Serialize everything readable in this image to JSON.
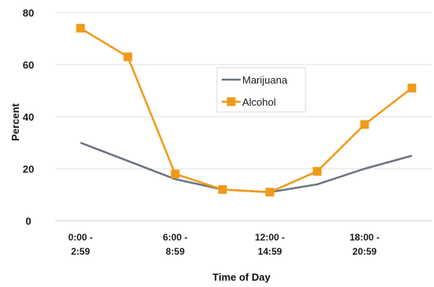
{
  "chart_data": {
    "type": "line",
    "title": "",
    "xlabel": "Time of Day",
    "ylabel": "Percent",
    "ylim": [
      0,
      80
    ],
    "yticks": [
      0,
      20,
      40,
      60,
      80
    ],
    "x_tick_labels": [
      {
        "index": 0,
        "line1": "0:00 -",
        "line2": "2:59"
      },
      {
        "index": 2,
        "line1": "6:00 -",
        "line2": "8:59"
      },
      {
        "index": 4,
        "line1": "12:00 -",
        "line2": "14:59"
      },
      {
        "index": 6,
        "line1": "18:00 -",
        "line2": "20:59"
      }
    ],
    "grid": {
      "horizontal": true,
      "vertical": false
    },
    "legend": {
      "placement": "center-right"
    },
    "series": [
      {
        "name": "Marijuana",
        "color": "#6b7380",
        "marker": "none",
        "values": [
          30,
          23,
          16,
          12,
          11,
          14,
          20,
          25
        ]
      },
      {
        "name": "Alcohol",
        "color": "#f09a1a",
        "marker": "square",
        "values": [
          74,
          63,
          18,
          12,
          11,
          19,
          37,
          51
        ]
      }
    ]
  }
}
